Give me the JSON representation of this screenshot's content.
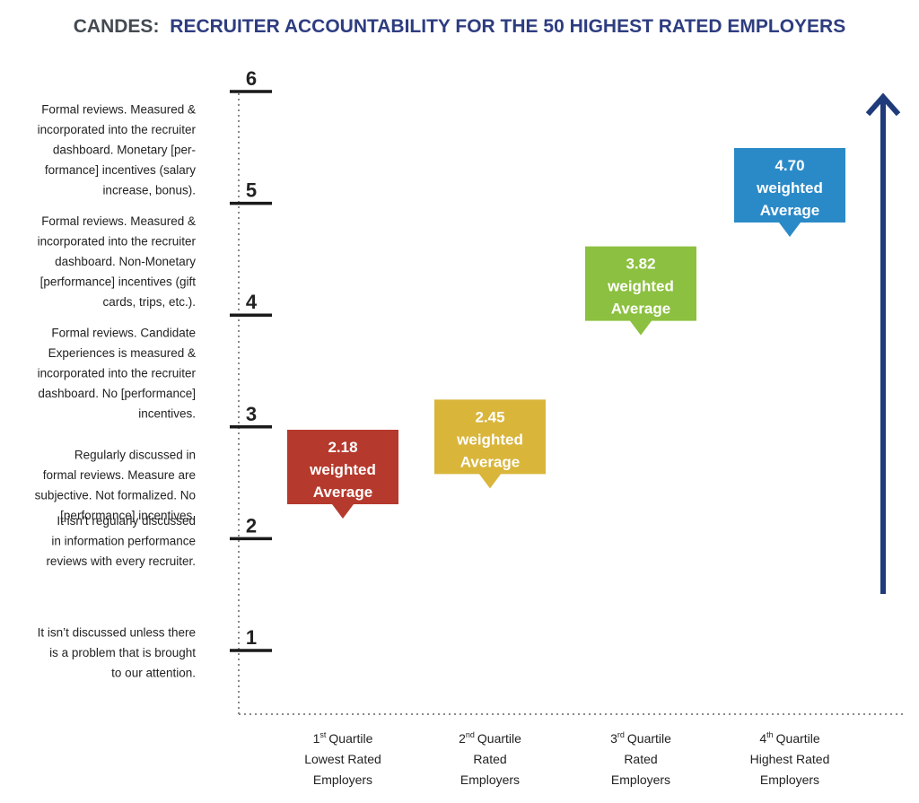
{
  "chart_data": {
    "type": "scatter",
    "title_prefix": "CANDES:",
    "title_main": "RECRUITER ACCOUNTABILITY FOR THE 50 HIGHEST RATED EMPLOYERS",
    "y_ticks": [
      "1",
      "2",
      "3",
      "4",
      "5",
      "6"
    ],
    "ylim": [
      1,
      6
    ],
    "level_descriptions": [
      {
        "y": 1.0,
        "lines": [
          "It isn’t discussed unless there",
          "is a problem that is brought",
          "to our attention."
        ]
      },
      {
        "y": 2.0,
        "lines": [
          "It isn’t regularly discussed",
          "in information performance",
          "reviews with every recruiter."
        ]
      },
      {
        "y": 2.5,
        "lines": [
          "Regularly discussed in",
          "formal reviews. Measure are",
          "subjective. Not formalized. No",
          "[performance] incentives."
        ]
      },
      {
        "y": 3.5,
        "lines": [
          "Formal reviews. Candidate",
          "Experiences is measured &",
          "incorporated into the recruiter",
          "dashboard. No [performance]",
          "incentives."
        ]
      },
      {
        "y": 4.5,
        "lines": [
          "Formal reviews. Measured &",
          "incorporated into the recruiter",
          "dashboard. Non-Monetary",
          "[performance] incentives (gift",
          "cards, trips, etc.)."
        ]
      },
      {
        "y": 5.5,
        "lines": [
          "Formal reviews. Measured &",
          "incorporated into the recruiter",
          "dashboard. Monetary [per-",
          "formance] incentives (salary",
          "increase, bonus)."
        ]
      }
    ],
    "categories": [
      {
        "num": "1",
        "sup": "st",
        "rest": "Quartile",
        "lines": [
          "Lowest Rated",
          "Employers"
        ]
      },
      {
        "num": "2",
        "sup": "nd",
        "rest": "Quartile",
        "lines": [
          "Rated",
          "Employers"
        ]
      },
      {
        "num": "3",
        "sup": "rd",
        "rest": "Quartile",
        "lines": [
          "Rated",
          "Employers"
        ]
      },
      {
        "num": "4",
        "sup": "th",
        "rest": "Quartile",
        "lines": [
          "Highest Rated",
          "Employers"
        ]
      }
    ],
    "values": [
      2.18,
      2.45,
      3.82,
      4.7
    ],
    "value_labels": [
      "2.18",
      "2.45",
      "3.82",
      "4.70"
    ],
    "callout_line1": "weighted",
    "callout_line2": "Average",
    "colors": [
      "#b53a2d",
      "#d9b53a",
      "#8cc040",
      "#2a8ac8"
    ],
    "title_prefix_color": "#444a52",
    "title_color": "#2e3d80",
    "arrow_color": "#1f3b7a"
  }
}
